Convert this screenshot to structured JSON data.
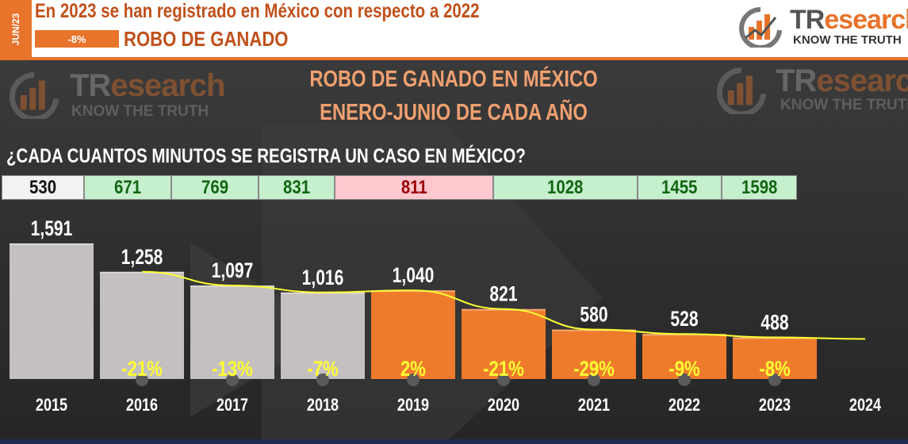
{
  "header": {
    "date_tab": "JUN/23",
    "headline": "En 2023 se han registrado en México con respecto a 2022",
    "change_badge": "-8%",
    "crime": "ROBO DE GANADO"
  },
  "brand": {
    "name_dark": "TR",
    "name_accent": "esearch",
    "tagline": "KNOW THE TRUTH",
    "colors": {
      "orange": "#e8732a",
      "gray": "#555555"
    }
  },
  "chart_title": [
    "ROBO DE GANADO EN MÉXICO",
    "ENERO-JUNIO DE CADA AÑO"
  ],
  "question": "¿CADA CUANTOS MINUTOS SE REGISTRA UN CASO EN MÉXICO?",
  "minutes_table": [
    {
      "value": "530",
      "status": "base"
    },
    {
      "value": "671",
      "status": "up"
    },
    {
      "value": "769",
      "status": "up"
    },
    {
      "value": "831",
      "status": "up"
    },
    {
      "value": "811",
      "status": "down"
    },
    {
      "value": "1028",
      "status": "up"
    },
    {
      "value": "1455",
      "status": "up"
    },
    {
      "value": "1598",
      "status": "up"
    }
  ],
  "chart_data": {
    "type": "bar",
    "categories": [
      "2015",
      "2016",
      "2017",
      "2018",
      "2019",
      "2020",
      "2021",
      "2022",
      "2023",
      "2024"
    ],
    "values": [
      1591,
      1258,
      1097,
      1016,
      1040,
      821,
      580,
      528,
      488,
      null
    ],
    "value_labels": [
      "1,591",
      "1,258",
      "1,097",
      "1,016",
      "1,040",
      "821",
      "580",
      "528",
      "488",
      ""
    ],
    "pct_change_labels": [
      "",
      "-21%",
      "-13%",
      "-7%",
      "2%",
      "-21%",
      "-29%",
      "-9%",
      "-8%",
      ""
    ],
    "bar_colors": [
      "#c4c0c0",
      "#c4c0c0",
      "#c4c0c0",
      "#c4c0c0",
      "#ee7b2c",
      "#ee7b2c",
      "#ee7b2c",
      "#ee7b2c",
      "#ee7b2c",
      ""
    ],
    "trend_line": {
      "color": "#ffff33",
      "from_index": 1,
      "to_index": 9
    },
    "ylim": [
      0,
      1800
    ],
    "grid": false
  }
}
